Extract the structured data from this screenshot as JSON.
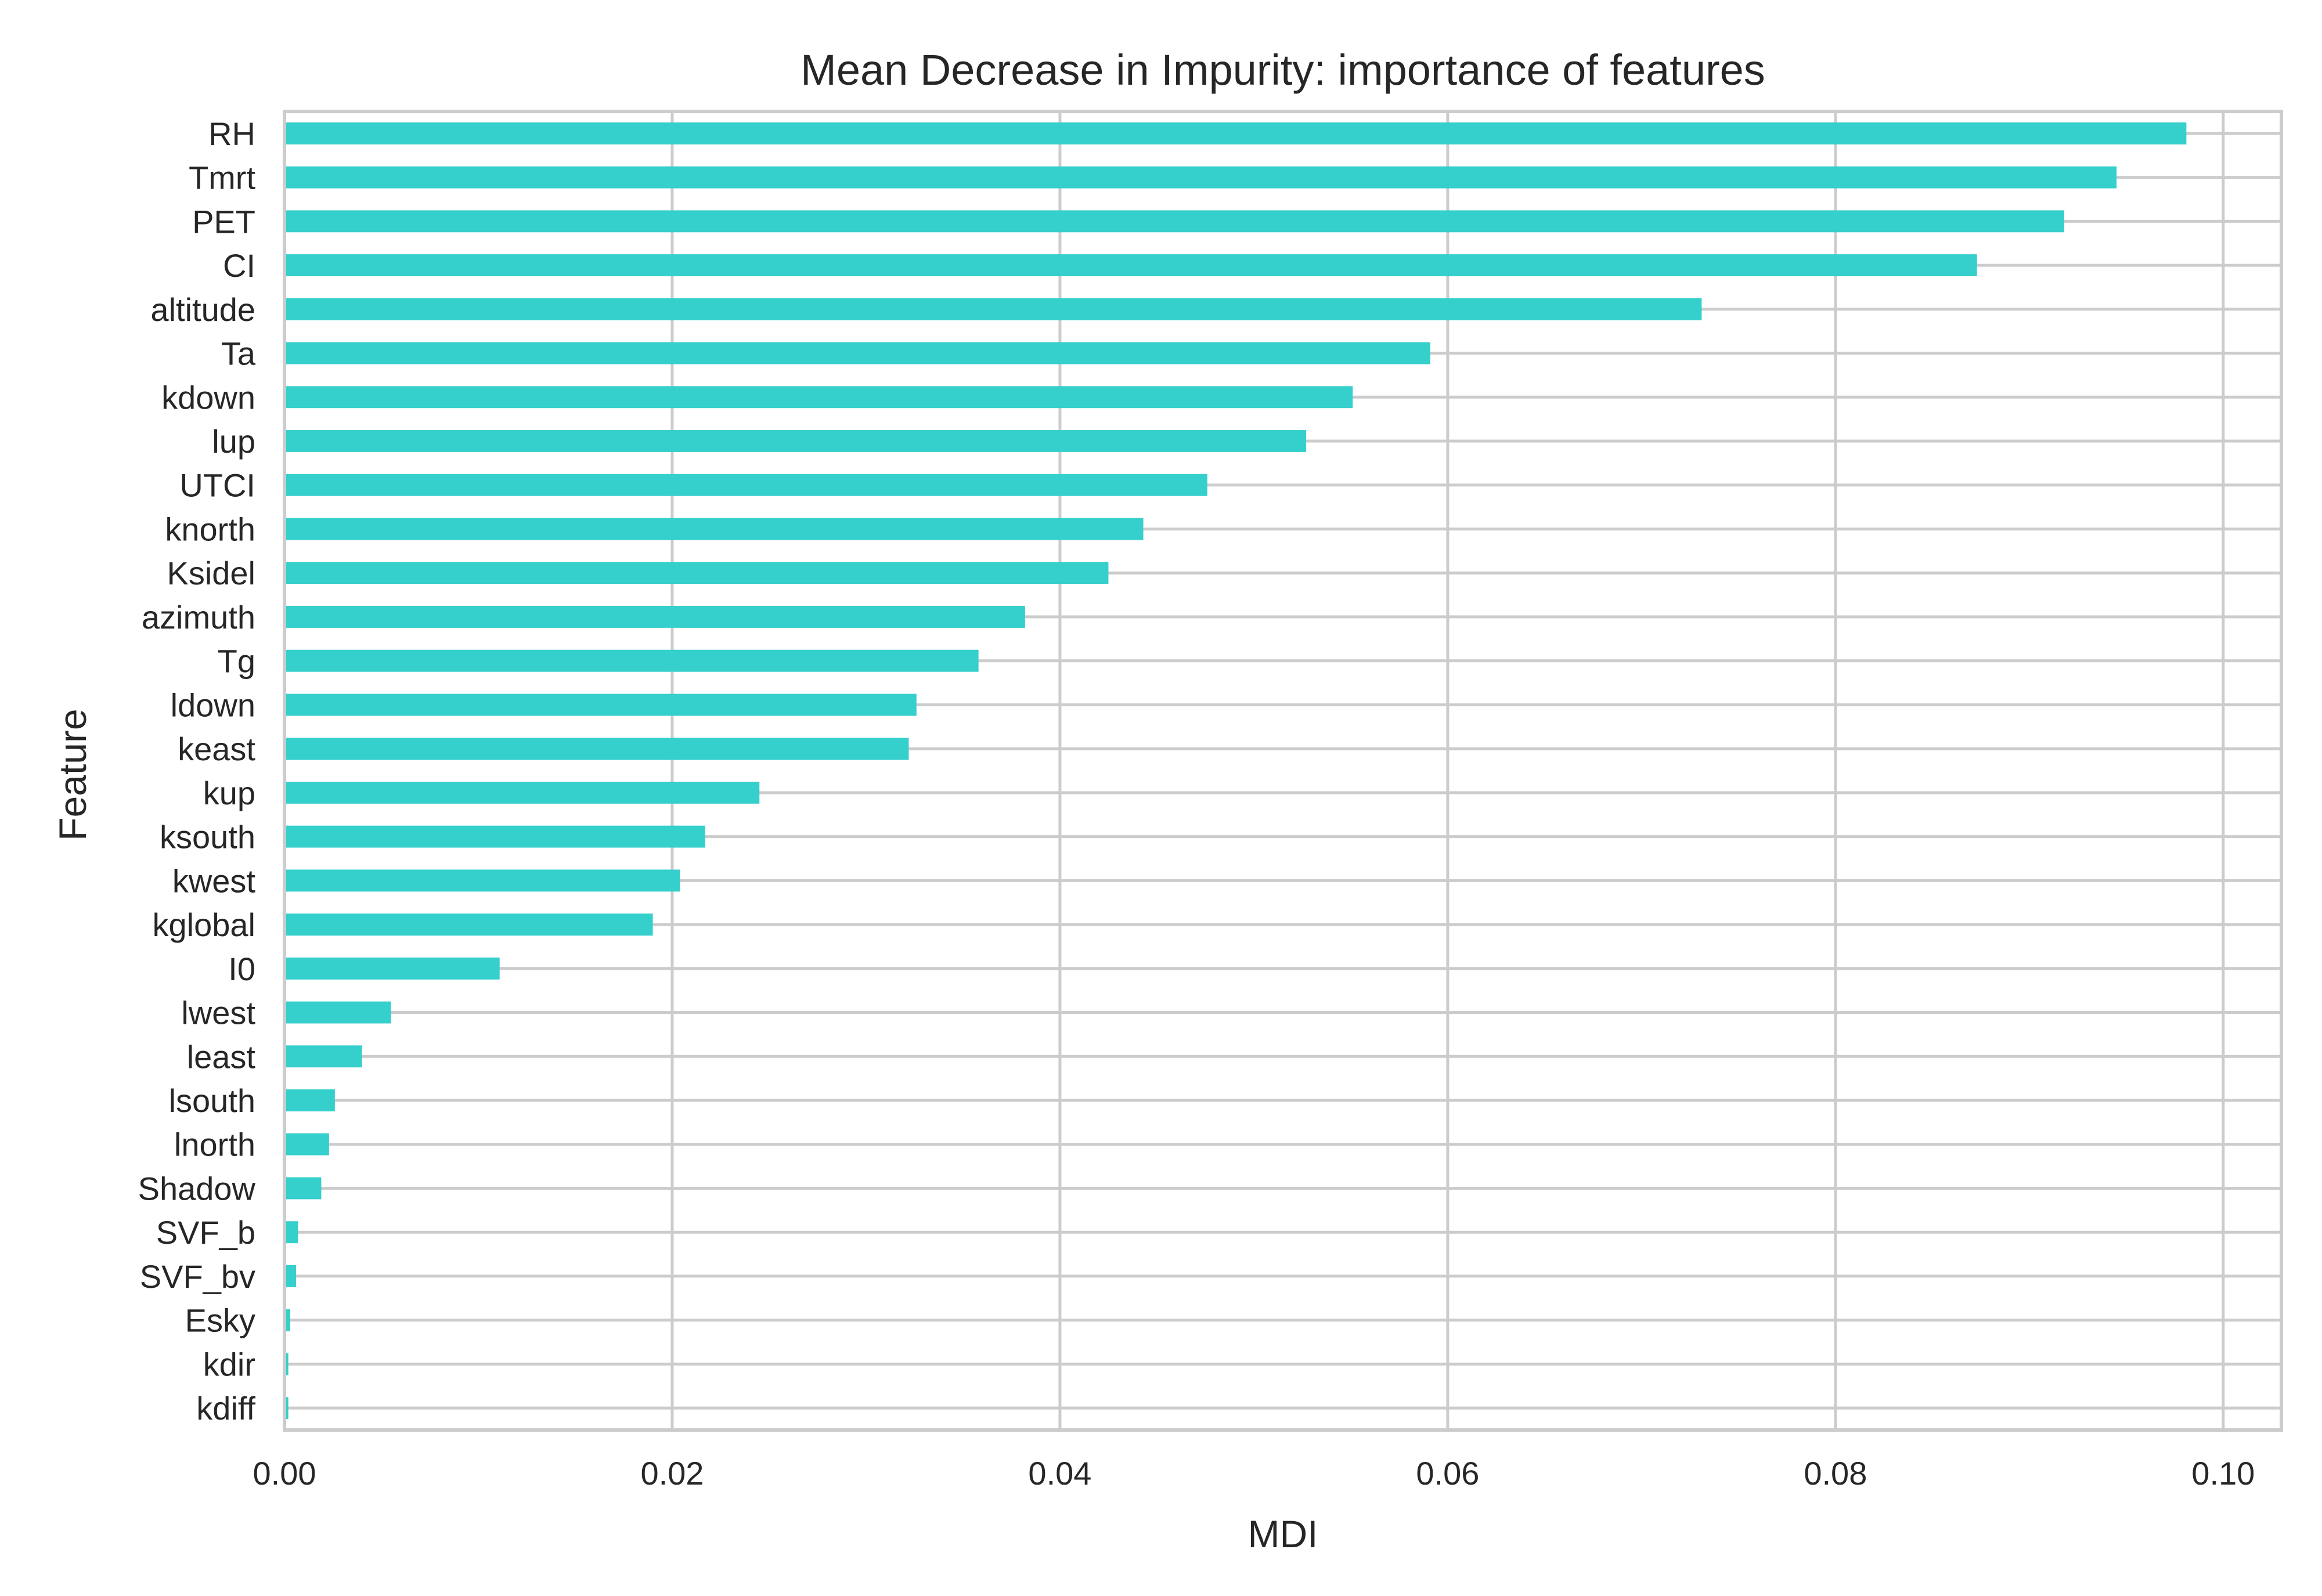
{
  "chart_data": {
    "type": "bar",
    "orientation": "horizontal",
    "title": "Mean Decrease in Impurity: importance of features",
    "xlabel": "MDI",
    "ylabel": "Feature",
    "xlim": [
      0,
      0.103
    ],
    "xticks": [
      0.0,
      0.02,
      0.04,
      0.06,
      0.08,
      0.1
    ],
    "xtick_labels": [
      "0.00",
      "0.02",
      "0.04",
      "0.06",
      "0.08",
      "0.10"
    ],
    "grid": true,
    "categories": [
      "RH",
      "Tmrt",
      "PET",
      "CI",
      "altitude",
      "Ta",
      "kdown",
      "lup",
      "UTCI",
      "knorth",
      "Ksidel",
      "azimuth",
      "Tg",
      "ldown",
      "keast",
      "kup",
      "ksouth",
      "kwest",
      "kglobal",
      "I0",
      "lwest",
      "least",
      "lsouth",
      "lnorth",
      "Shadow",
      "SVF_b",
      "SVF_bv",
      "Esky",
      "kdir",
      "kdiff"
    ],
    "values": [
      0.0981,
      0.0945,
      0.0918,
      0.0873,
      0.0731,
      0.0591,
      0.0551,
      0.0527,
      0.0476,
      0.0443,
      0.0425,
      0.0382,
      0.0358,
      0.0326,
      0.0322,
      0.0245,
      0.0217,
      0.0204,
      0.019,
      0.0111,
      0.0055,
      0.004,
      0.0026,
      0.0023,
      0.0019,
      0.0007,
      0.0006,
      0.0003,
      0.0002,
      0.0002
    ],
    "bar_color": "#35cfcc",
    "grid_color": "#cccccc"
  }
}
